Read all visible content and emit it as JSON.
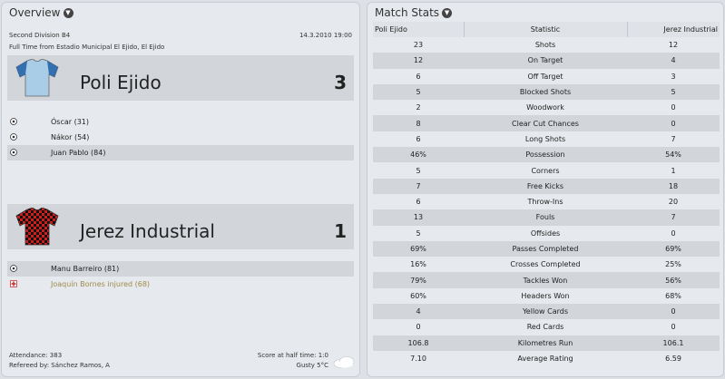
{
  "overview": {
    "title": "Overview",
    "competition": "Second Division B4",
    "datetime": "14.3.2010 19:00",
    "result_line": "Full Time from Estadio Municipal El Ejido, El Ejido",
    "home": {
      "name": "Poli Ejido",
      "score": "3",
      "kit_colors": {
        "body": "#a9cde6",
        "accent": "#1f5fa8"
      },
      "events": [
        {
          "icon": "goal-icon",
          "text": "Óscar (31)"
        },
        {
          "icon": "goal-icon",
          "text": "Nákor (54)"
        },
        {
          "icon": "goal-icon",
          "text": "Juan Pablo (84)"
        }
      ]
    },
    "away": {
      "name": "Jerez Industrial",
      "score": "1",
      "kit_colors": {
        "check_a": "#d21d1d",
        "check_b": "#111111"
      },
      "events": [
        {
          "icon": "goal-icon",
          "text": "Manu Barreiro (81)"
        },
        {
          "icon": "injury-icon",
          "text": "Joaquín Bornes injured (68)"
        }
      ]
    },
    "footer": {
      "attendance": "Attendance: 383",
      "referee": "Refereed by: Sánchez Ramos, A",
      "halftime": "Score at half time: 1:0",
      "weather": "Gusty 5°C"
    }
  },
  "match_stats": {
    "title": "Match Stats",
    "headers": {
      "home": "Poli Ejido",
      "stat": "Statistic",
      "away": "Jerez Industrial"
    },
    "rows": [
      {
        "home": "23",
        "stat": "Shots",
        "away": "12"
      },
      {
        "home": "12",
        "stat": "On Target",
        "away": "4"
      },
      {
        "home": "6",
        "stat": "Off Target",
        "away": "3"
      },
      {
        "home": "5",
        "stat": "Blocked Shots",
        "away": "5"
      },
      {
        "home": "2",
        "stat": "Woodwork",
        "away": "0"
      },
      {
        "home": "8",
        "stat": "Clear Cut Chances",
        "away": "0"
      },
      {
        "home": "6",
        "stat": "Long Shots",
        "away": "7"
      },
      {
        "home": "46%",
        "stat": "Possession",
        "away": "54%"
      },
      {
        "home": "5",
        "stat": "Corners",
        "away": "1"
      },
      {
        "home": "7",
        "stat": "Free Kicks",
        "away": "18"
      },
      {
        "home": "6",
        "stat": "Throw-Ins",
        "away": "20"
      },
      {
        "home": "13",
        "stat": "Fouls",
        "away": "7"
      },
      {
        "home": "5",
        "stat": "Offsides",
        "away": "0"
      },
      {
        "home": "69%",
        "stat": "Passes Completed",
        "away": "69%"
      },
      {
        "home": "16%",
        "stat": "Crosses Completed",
        "away": "25%"
      },
      {
        "home": "79%",
        "stat": "Tackles Won",
        "away": "56%"
      },
      {
        "home": "60%",
        "stat": "Headers Won",
        "away": "68%"
      },
      {
        "home": "4",
        "stat": "Yellow Cards",
        "away": "0"
      },
      {
        "home": "0",
        "stat": "Red Cards",
        "away": "0"
      },
      {
        "home": "106.8",
        "stat": "Kilometres Run",
        "away": "106.1"
      },
      {
        "home": "7.10",
        "stat": "Average Rating",
        "away": "6.59"
      }
    ]
  }
}
